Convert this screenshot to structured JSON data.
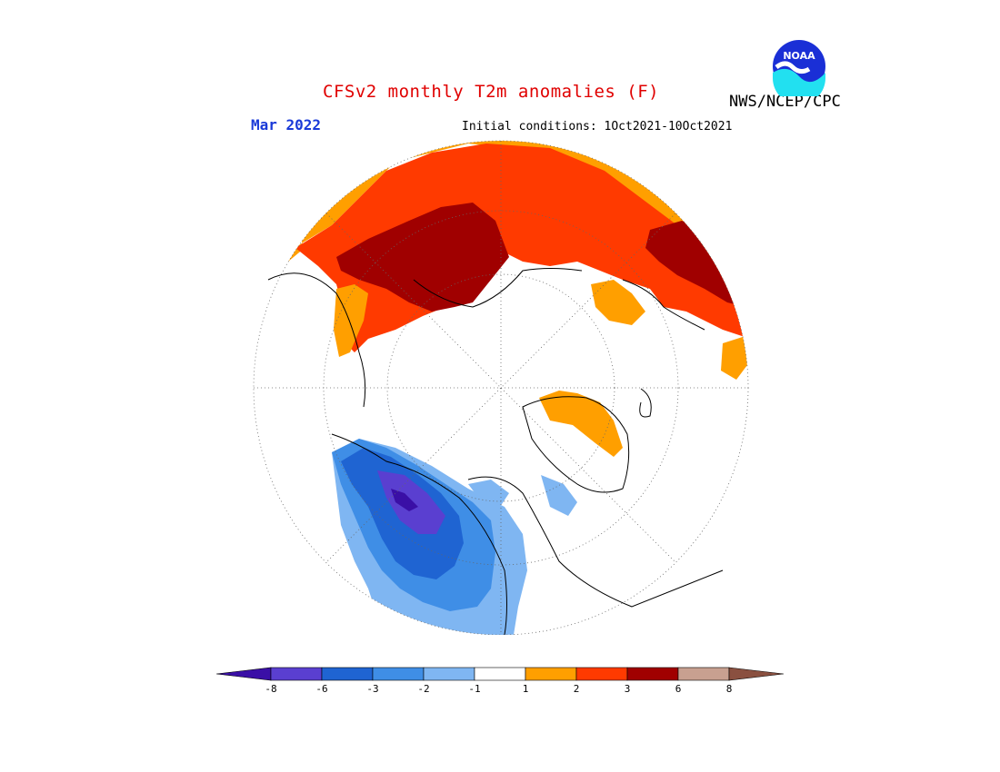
{
  "header": {
    "title": "CFSv2 monthly T2m anomalies (F)",
    "agency": "NWS/NCEP/CPC",
    "period": "Mar 2022",
    "initial_conditions": "Initial conditions: 1Oct2021-10Oct2021"
  },
  "logo": {
    "text": "NOAA"
  },
  "legend": {
    "colors": [
      "#3a0fa6",
      "#5a3fd0",
      "#1f64d2",
      "#3f8ee6",
      "#7fb6f2",
      "#ffffff",
      "#ff9f00",
      "#ff3a00",
      "#a00000",
      "#c8a090",
      "#8a5040"
    ],
    "labels": [
      "-8",
      "-6",
      "-3",
      "-2",
      "-1",
      "1",
      "2",
      "3",
      "6",
      "8"
    ]
  }
}
